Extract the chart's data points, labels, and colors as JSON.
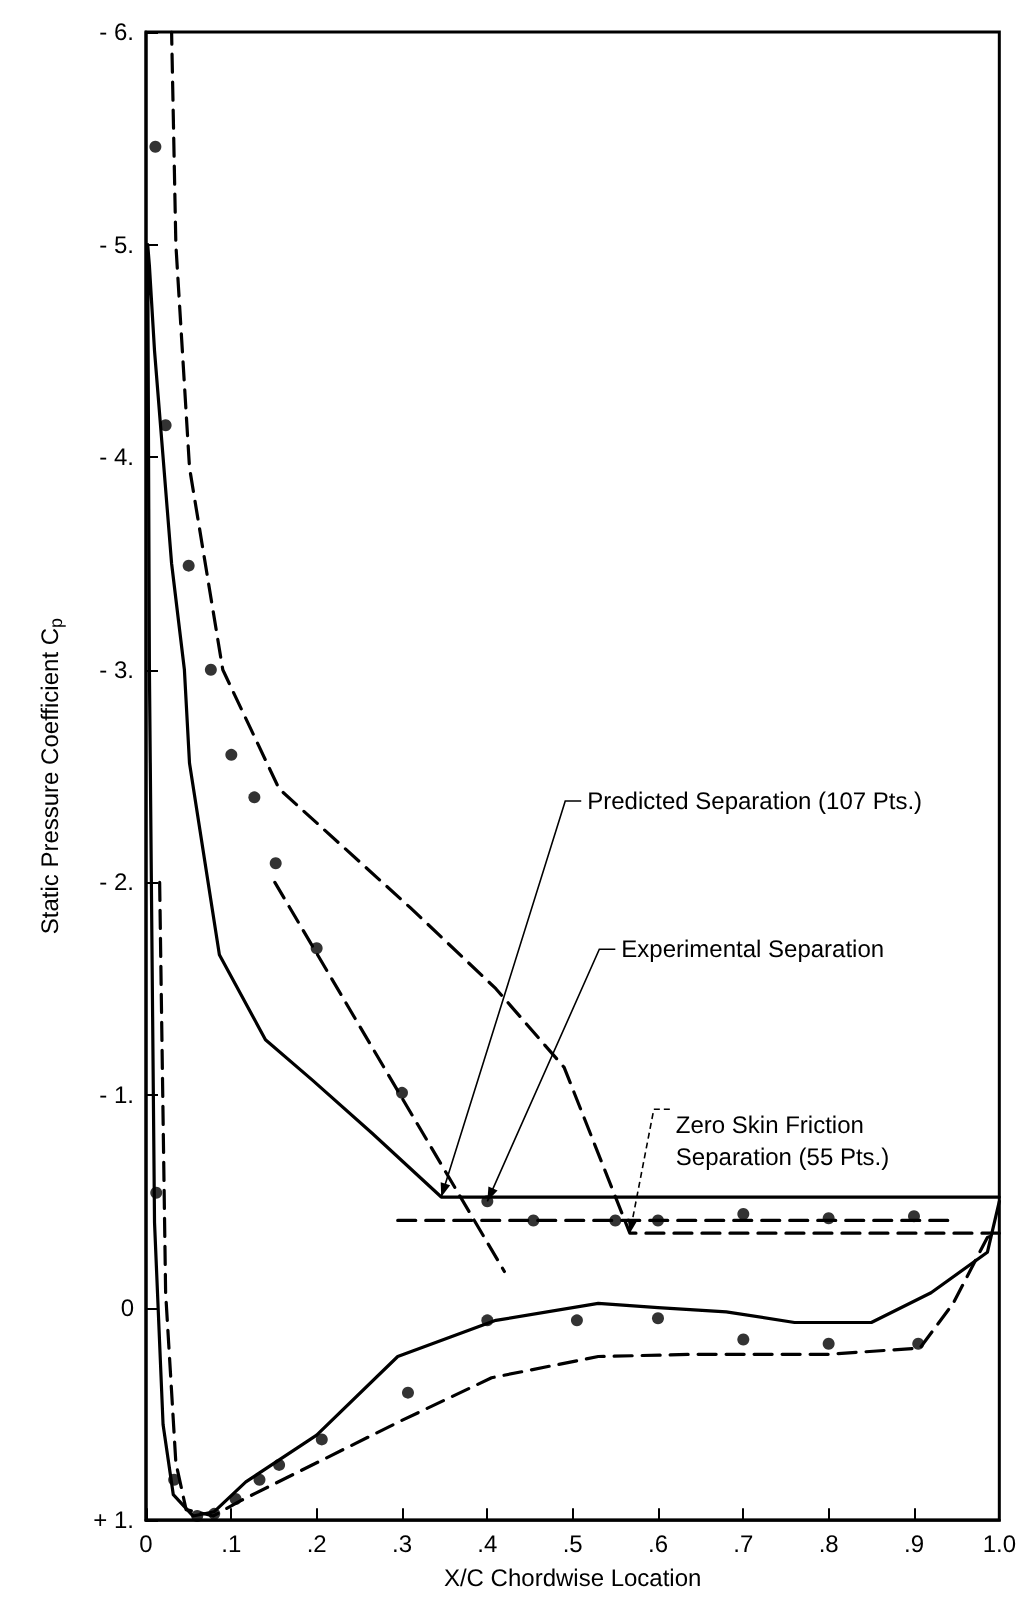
{
  "chart_data": {
    "type": "line",
    "xlabel": "X/C Chordwise Location",
    "ylabel": "Static Pressure Coefficient C$_{p}$",
    "xlim": [
      0,
      1
    ],
    "xticks": [
      0,
      {
        "value": 0.1,
        "label": ".1"
      },
      {
        "value": 0.2,
        "label": ".2"
      },
      {
        "value": 0.3,
        "label": ".3"
      },
      {
        "value": 0.4,
        "label": ".4"
      },
      {
        "value": 0.5,
        "label": ".5"
      },
      {
        "value": 0.6,
        "label": ".6"
      },
      {
        "value": 0.7,
        "label": ".7"
      },
      {
        "value": 0.8,
        "label": ".8"
      },
      {
        "value": 0.9,
        "label": ".9"
      },
      {
        "value": 1,
        "label": "1.0"
      }
    ],
    "ylim": [
      1,
      -6
    ],
    "yticks": [
      {
        "value": -6,
        "label": "- 6."
      },
      {
        "value": -5,
        "label": "- 5."
      },
      {
        "value": -4,
        "label": "- 4."
      },
      {
        "value": -3,
        "label": "- 3."
      },
      {
        "value": -2,
        "label": "- 2."
      },
      {
        "value": -1,
        "label": "- 1."
      },
      0,
      {
        "value": 1,
        "label": "+ 1."
      }
    ],
    "grid": false,
    "series": [
      {
        "color": "#000000",
        "line_style": "solid",
        "marker": "none",
        "x": [
          1.0,
          0.986,
          0.92,
          0.85,
          0.76,
          0.68,
          0.6,
          0.53,
          0.41,
          0.295,
          0.2,
          0.117,
          0.08,
          0.055,
          0.032,
          0.02,
          0.01,
          0.004,
          0.002,
          0.004,
          0.01,
          0.02,
          0.03,
          0.045,
          0.051,
          0.086,
          0.14,
          0.195,
          0.265,
          0.346,
          0.6,
          1.0
        ],
        "values": [
          -0.5,
          -0.26,
          -0.07,
          0.07,
          0.07,
          0.02,
          0,
          -0.02,
          0.06,
          0.23,
          0.6,
          0.82,
          0.96,
          0.98,
          0.88,
          0.55,
          -0.4,
          -3.0,
          -5.0,
          -4.9,
          -4.5,
          -4.0,
          -3.5,
          -3.0,
          -2.56,
          -1.66,
          -1.26,
          -1.07,
          -0.82,
          -0.52,
          -0.52,
          -0.52
        ]
      },
      {
        "color": "#000000",
        "line_style": "dashed",
        "marker": "none",
        "x": [
          0.016,
          0.023,
          0.035,
          0.047,
          0.079,
          0.11,
          0.2,
          0.295,
          0.405,
          0.53,
          0.64,
          0.8,
          0.907,
          0.946,
          0.986,
          1.0,
          0.567,
          0.49,
          0.41,
          0.31,
          0.233,
          0.156,
          0.09,
          0.051,
          0.035,
          0.03
        ],
        "values": [
          -2.0,
          -0.07,
          0.73,
          0.95,
          0.98,
          0.91,
          0.73,
          0.54,
          0.33,
          0.23,
          0.22,
          0.22,
          0.19,
          -0.02,
          -0.33,
          -0.35,
          -0.35,
          -1.13,
          -1.5,
          -1.88,
          -2.16,
          -2.44,
          -3.0,
          -3.95,
          -5.0,
          -6.0
        ]
      },
      {
        "color": "#000000",
        "line_style": "dashed",
        "marker": "none",
        "x": [
          0.151,
          0.42
        ],
        "values": [
          -2.0,
          -0.17
        ]
      },
      {
        "color": "#000000",
        "line_style": "dashed",
        "marker": "none",
        "x": [
          0.295,
          0.947
        ],
        "values": [
          -0.41,
          -0.41
        ]
      },
      {
        "type": "scatter",
        "color": "#000000",
        "marker": "circle",
        "x": [
          0.011,
          0.023,
          0.05,
          0.076,
          0.1,
          0.127,
          0.152,
          0.2,
          0.3,
          0.4,
          0.454,
          0.55,
          0.6,
          0.7,
          0.8,
          0.9,
          0.012,
          0.033,
          0.06,
          0.08,
          0.105,
          0.133,
          0.156,
          0.206,
          0.307,
          0.4,
          0.505,
          0.6,
          0.7,
          0.8,
          0.905
        ],
        "values": [
          -5.46,
          -4.15,
          -3.49,
          -3.0,
          -2.6,
          -2.4,
          -2.09,
          -1.69,
          -1.01,
          -0.5,
          -0.41,
          -0.41,
          -0.41,
          -0.44,
          -0.42,
          -0.43,
          -0.54,
          0.81,
          0.98,
          0.97,
          0.9,
          0.81,
          0.74,
          0.62,
          0.4,
          0.06,
          0.06,
          0.05,
          0.15,
          0.17,
          0.17
        ]
      }
    ],
    "annotations": [
      {
        "text": "Predicted Separation (107 Pts.)",
        "x": 0.346,
        "y": -0.52
      },
      {
        "text": "Experimental Separation",
        "x": 0.4,
        "y": -0.5
      },
      {
        "text": "Zero Skin Friction Separation (55 Pts.)",
        "x": 0.567,
        "y": -0.35
      }
    ]
  }
}
